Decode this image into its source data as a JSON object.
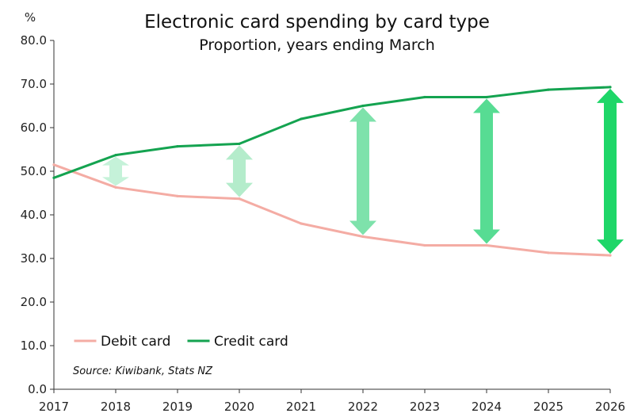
{
  "chart_data": {
    "type": "line",
    "title": "Electronic card spending by card type",
    "subtitle": "Proportion, years ending March",
    "ylabel": "%",
    "xlabel": "",
    "x": [
      "2017",
      "2018",
      "2019",
      "2020",
      "2021",
      "2022",
      "2023",
      "2024",
      "2025",
      "2026"
    ],
    "ylim": [
      0,
      80
    ],
    "yticks": [
      "0.0",
      "10.0",
      "20.0",
      "30.0",
      "40.0",
      "50.0",
      "60.0",
      "70.0",
      "80.0"
    ],
    "series": [
      {
        "name": "Debit card",
        "color": "#f4aca4",
        "values": [
          51.5,
          46.3,
          44.3,
          43.7,
          38.0,
          35.0,
          33.0,
          33.0,
          31.3,
          30.7
        ]
      },
      {
        "name": "Credit card",
        "color": "#14a350",
        "values": [
          48.5,
          53.7,
          55.7,
          56.3,
          62.0,
          65.0,
          67.0,
          67.0,
          68.7,
          69.3
        ]
      }
    ],
    "gap_arrows": {
      "years": [
        "2018",
        "2020",
        "2022",
        "2024",
        "2026"
      ],
      "colors": [
        "#c5f2d9",
        "#b4eccb",
        "#7ee2ab",
        "#57dc93",
        "#1ed668"
      ]
    },
    "grid": false,
    "legend": "bottom-left",
    "source": "Source: Kiwibank, Stats NZ"
  }
}
